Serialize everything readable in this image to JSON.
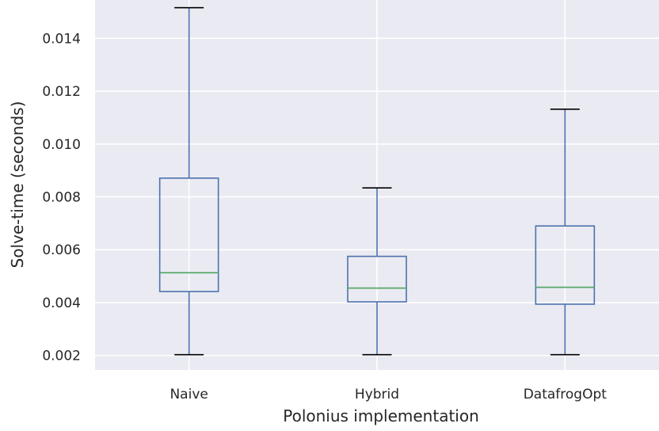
{
  "chart_data": {
    "type": "box",
    "xlabel": "Polonius implementation",
    "ylabel": "Solve-time (seconds)",
    "ylim": [
      0.00145,
      0.01545
    ],
    "yticks": [
      "0.002",
      "0.004",
      "0.006",
      "0.008",
      "0.010",
      "0.012",
      "0.014"
    ],
    "grid": true,
    "colors": {
      "background": "#eaeaf2",
      "grid": "#ffffff",
      "box": "#4c72b0",
      "median": "#55a868",
      "text": "#262626"
    },
    "categories": [
      "Naive",
      "Hybrid",
      "DatafrogOpt"
    ],
    "boxes": [
      {
        "label": "Naive",
        "whisker_low": 0.00203,
        "q1": 0.00442,
        "median": 0.00513,
        "q3": 0.00871,
        "whisker_high": 0.01516
      },
      {
        "label": "Hybrid",
        "whisker_low": 0.00203,
        "q1": 0.00403,
        "median": 0.00455,
        "q3": 0.00575,
        "whisker_high": 0.00834
      },
      {
        "label": "DatafrogOpt",
        "whisker_low": 0.00203,
        "q1": 0.00394,
        "median": 0.00458,
        "q3": 0.0069,
        "whisker_high": 0.01132
      }
    ]
  }
}
